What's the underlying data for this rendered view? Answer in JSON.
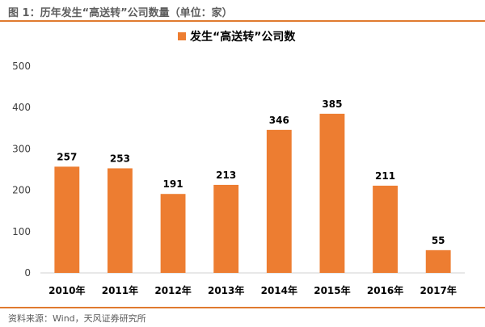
{
  "figure": {
    "title": "图 1：历年发生“高送转”公司数量（单位：家）",
    "source": "资料来源：Wind，天风证券研究所"
  },
  "colors": {
    "bar": "#ed7d31",
    "accent_rule": "#e07a2f",
    "axis_text": "#404040",
    "label_text": "#000000"
  },
  "chart_data": {
    "type": "bar",
    "title": "",
    "xlabel": "",
    "ylabel": "",
    "categories": [
      "2010年",
      "2011年",
      "2012年",
      "2013年",
      "2014年",
      "2015年",
      "2016年",
      "2017年"
    ],
    "series": [
      {
        "name": "发生“高送转”公司数",
        "values": [
          257,
          253,
          191,
          213,
          346,
          385,
          211,
          55
        ]
      }
    ],
    "ylim": [
      0,
      500
    ],
    "yticks": [
      0,
      100,
      200,
      300,
      400,
      500
    ],
    "grid": false,
    "legend": "top-center",
    "data_labels": true
  }
}
